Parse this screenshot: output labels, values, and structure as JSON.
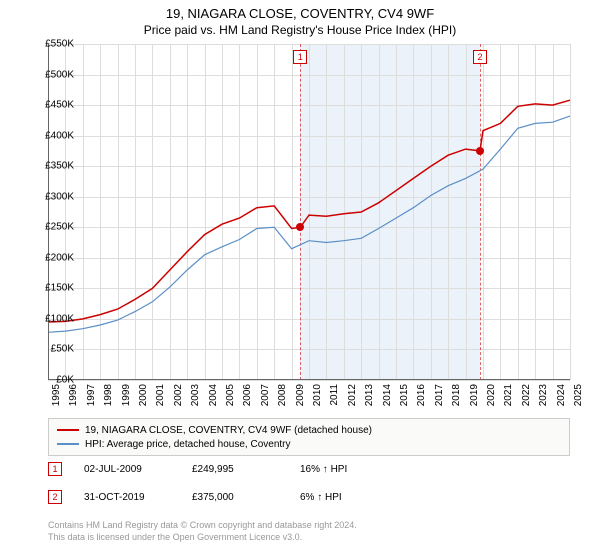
{
  "title_line1": "19, NIAGARA CLOSE, COVENTRY, CV4 9WF",
  "title_line2": "Price paid vs. HM Land Registry's House Price Index (HPI)",
  "chart": {
    "type": "line",
    "x_start_year": 1995,
    "x_end_year": 2025,
    "y_min": 0,
    "y_max": 550,
    "y_tick_step": 50,
    "y_prefix": "£",
    "y_suffix": "K",
    "grid_color": "#dddddd",
    "background_color": "#ffffff",
    "shaded_region": {
      "from_year": 2009.5,
      "to_year": 2019.83,
      "color": "#dce8f5",
      "opacity": 0.55
    },
    "marker_dash_color": "#cc0000",
    "series": {
      "property": {
        "color": "#cc0000",
        "width": 1.5,
        "label": "19, NIAGARA CLOSE, COVENTRY, CV4 9WF (detached house)",
        "values_by_year": {
          "1995": 95,
          "1996": 96,
          "1997": 100,
          "1998": 107,
          "1999": 116,
          "2000": 132,
          "2001": 150,
          "2002": 180,
          "2003": 210,
          "2004": 238,
          "2005": 255,
          "2006": 265,
          "2007": 282,
          "2008": 285,
          "2009": 248,
          "2009.5": 250,
          "2010": 270,
          "2011": 268,
          "2012": 272,
          "2013": 275,
          "2014": 290,
          "2015": 310,
          "2016": 330,
          "2017": 350,
          "2018": 368,
          "2019": 378,
          "2019.83": 375,
          "2020": 408,
          "2021": 420,
          "2022": 448,
          "2023": 452,
          "2024": 450,
          "2025": 458
        }
      },
      "hpi": {
        "color": "#5b8fc7",
        "width": 1.2,
        "label": "HPI: Average price, detached house, Coventry",
        "values_by_year": {
          "1995": 78,
          "1996": 80,
          "1997": 84,
          "1998": 90,
          "1999": 98,
          "2000": 112,
          "2001": 128,
          "2002": 152,
          "2003": 180,
          "2004": 205,
          "2005": 218,
          "2006": 230,
          "2007": 248,
          "2008": 250,
          "2009": 215,
          "2010": 228,
          "2011": 225,
          "2012": 228,
          "2013": 232,
          "2014": 248,
          "2015": 265,
          "2016": 282,
          "2017": 302,
          "2018": 318,
          "2019": 330,
          "2020": 345,
          "2021": 378,
          "2022": 412,
          "2023": 420,
          "2024": 422,
          "2025": 432
        }
      }
    },
    "sale_markers": [
      {
        "n": "1",
        "year": 2009.5,
        "value": 250
      },
      {
        "n": "2",
        "year": 2019.83,
        "value": 375
      }
    ]
  },
  "legend": {
    "series1_label": "19, NIAGARA CLOSE, COVENTRY, CV4 9WF (detached house)",
    "series2_label": "HPI: Average price, detached house, Coventry"
  },
  "sales": [
    {
      "n": "1",
      "date": "02-JUL-2009",
      "price": "£249,995",
      "delta": "16% ↑ HPI"
    },
    {
      "n": "2",
      "date": "31-OCT-2019",
      "price": "£375,000",
      "delta": "6% ↑ HPI"
    }
  ],
  "footer_line1": "Contains HM Land Registry data © Crown copyright and database right 2024.",
  "footer_line2": "This data is licensed under the Open Government Licence v3.0."
}
